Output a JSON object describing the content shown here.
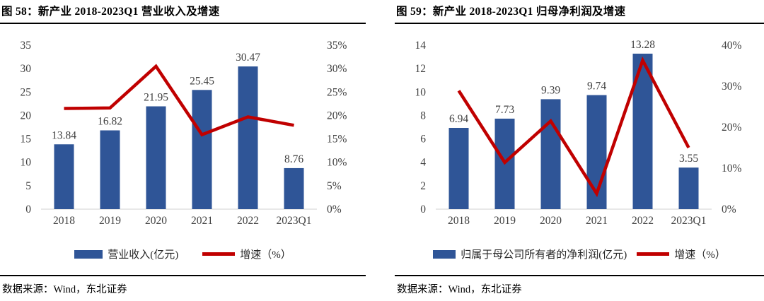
{
  "colors": {
    "bar_blue": "#2F5597",
    "line_red": "#C00000",
    "axis_text": "#404040",
    "data_label_text": "#404040",
    "baseline_gray": "#D9D9D9",
    "title_text": "#000000"
  },
  "chart_data": [
    {
      "type": "bar",
      "subtype": "combo-bar-line",
      "title": "图 58：新产业 2018-2023Q1 营业收入及增速",
      "categories": [
        "2018",
        "2019",
        "2020",
        "2021",
        "2022",
        "2023Q1"
      ],
      "bar_series": {
        "name": "营业收入(亿元)",
        "values": [
          13.84,
          16.82,
          21.95,
          25.45,
          30.47,
          8.76
        ],
        "labels": [
          "13.84",
          "16.82",
          "21.95",
          "25.45",
          "30.47",
          "8.76"
        ],
        "color": "#2F5597"
      },
      "line_series": {
        "name": "增速（%）",
        "values": [
          21.5,
          21.6,
          30.5,
          15.9,
          19.7,
          17.9
        ],
        "color": "#C00000"
      },
      "left_axis": {
        "min": 0,
        "max": 35,
        "step": 5,
        "ticks": [
          "0",
          "5",
          "10",
          "15",
          "20",
          "25",
          "30",
          "35"
        ]
      },
      "right_axis": {
        "min": 0,
        "max": 35,
        "step": 5,
        "ticks": [
          "0%",
          "5%",
          "10%",
          "15%",
          "20%",
          "25%",
          "30%",
          "35%"
        ]
      },
      "grid": false,
      "legend_position": "bottom",
      "source": "数据来源：Wind，东北证券"
    },
    {
      "type": "bar",
      "subtype": "combo-bar-line",
      "title": "图 59：新产业 2018-2023Q1 归母净利润及增速",
      "categories": [
        "2018",
        "2019",
        "2020",
        "2021",
        "2022",
        "2023Q1"
      ],
      "bar_series": {
        "name": "归属于母公司所有者的净利润(亿元)",
        "values": [
          6.94,
          7.73,
          9.39,
          9.74,
          13.28,
          3.55
        ],
        "labels": [
          "6.94",
          "7.73",
          "9.39",
          "9.74",
          "13.28",
          "3.55"
        ],
        "color": "#2F5597"
      },
      "line_series": {
        "name": "增速（%）",
        "values": [
          28.9,
          11.4,
          21.5,
          3.8,
          36.3,
          15
        ],
        "color": "#C00000"
      },
      "left_axis": {
        "min": 0,
        "max": 14,
        "step": 2,
        "ticks": [
          "0",
          "2",
          "4",
          "6",
          "8",
          "10",
          "12",
          "14"
        ]
      },
      "right_axis": {
        "min": 0,
        "max": 40,
        "step": 10,
        "ticks": [
          "0%",
          "10%",
          "20%",
          "30%",
          "40%"
        ]
      },
      "grid": false,
      "legend_position": "bottom",
      "source": "数据来源：Wind，东北证券"
    }
  ]
}
